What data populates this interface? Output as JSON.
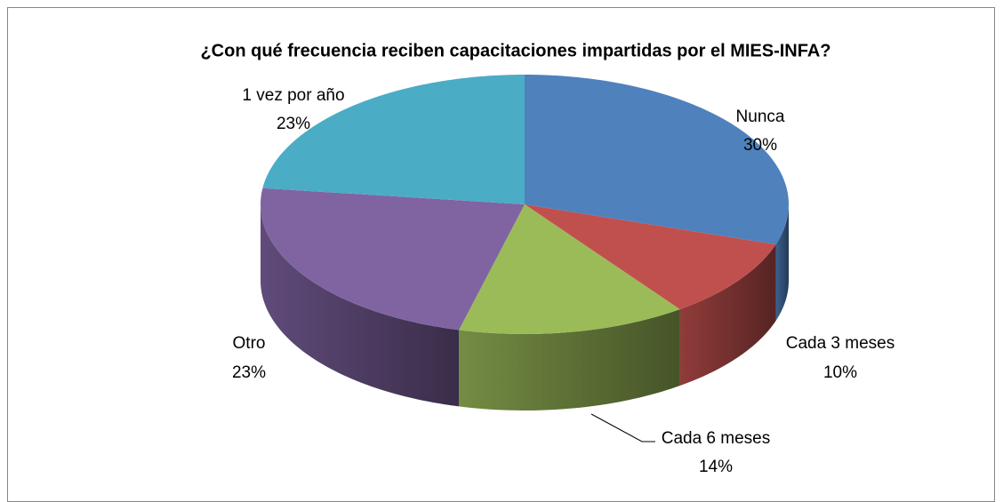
{
  "chart_data": {
    "type": "pie",
    "title": "¿Con qué frecuencia  reciben capacitaciones impartidas por el  MIES-INFA?",
    "categories": [
      "Nunca",
      "Cada 3 meses",
      "Cada 6 meses",
      "Otro",
      "1 vez por año"
    ],
    "values": [
      30,
      10,
      14,
      23,
      23
    ],
    "value_labels": [
      "30%",
      "10%",
      "14%",
      "23%",
      "23%"
    ],
    "colors": [
      "#4f81bd",
      "#c0504d",
      "#9bbb59",
      "#8064a2",
      "#4bacc6"
    ]
  }
}
